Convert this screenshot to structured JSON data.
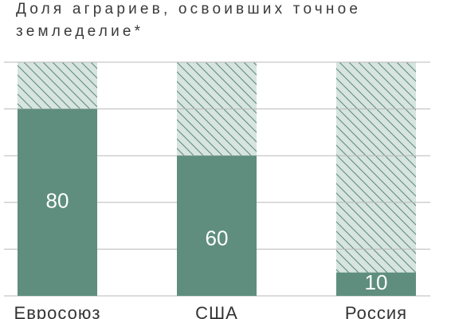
{
  "chart_data": {
    "type": "bar",
    "title": "Доля аграриев, освоивших точное земледелие*",
    "categories": [
      "Евросоюз",
      "США",
      "Россия"
    ],
    "values": [
      80,
      60,
      10
    ],
    "color": "#5f8e7e",
    "remainder_color": "#d7e4df",
    "ylim": [
      0,
      100
    ],
    "yticks": [
      0,
      20,
      40,
      60,
      80,
      100
    ],
    "grid": true
  }
}
